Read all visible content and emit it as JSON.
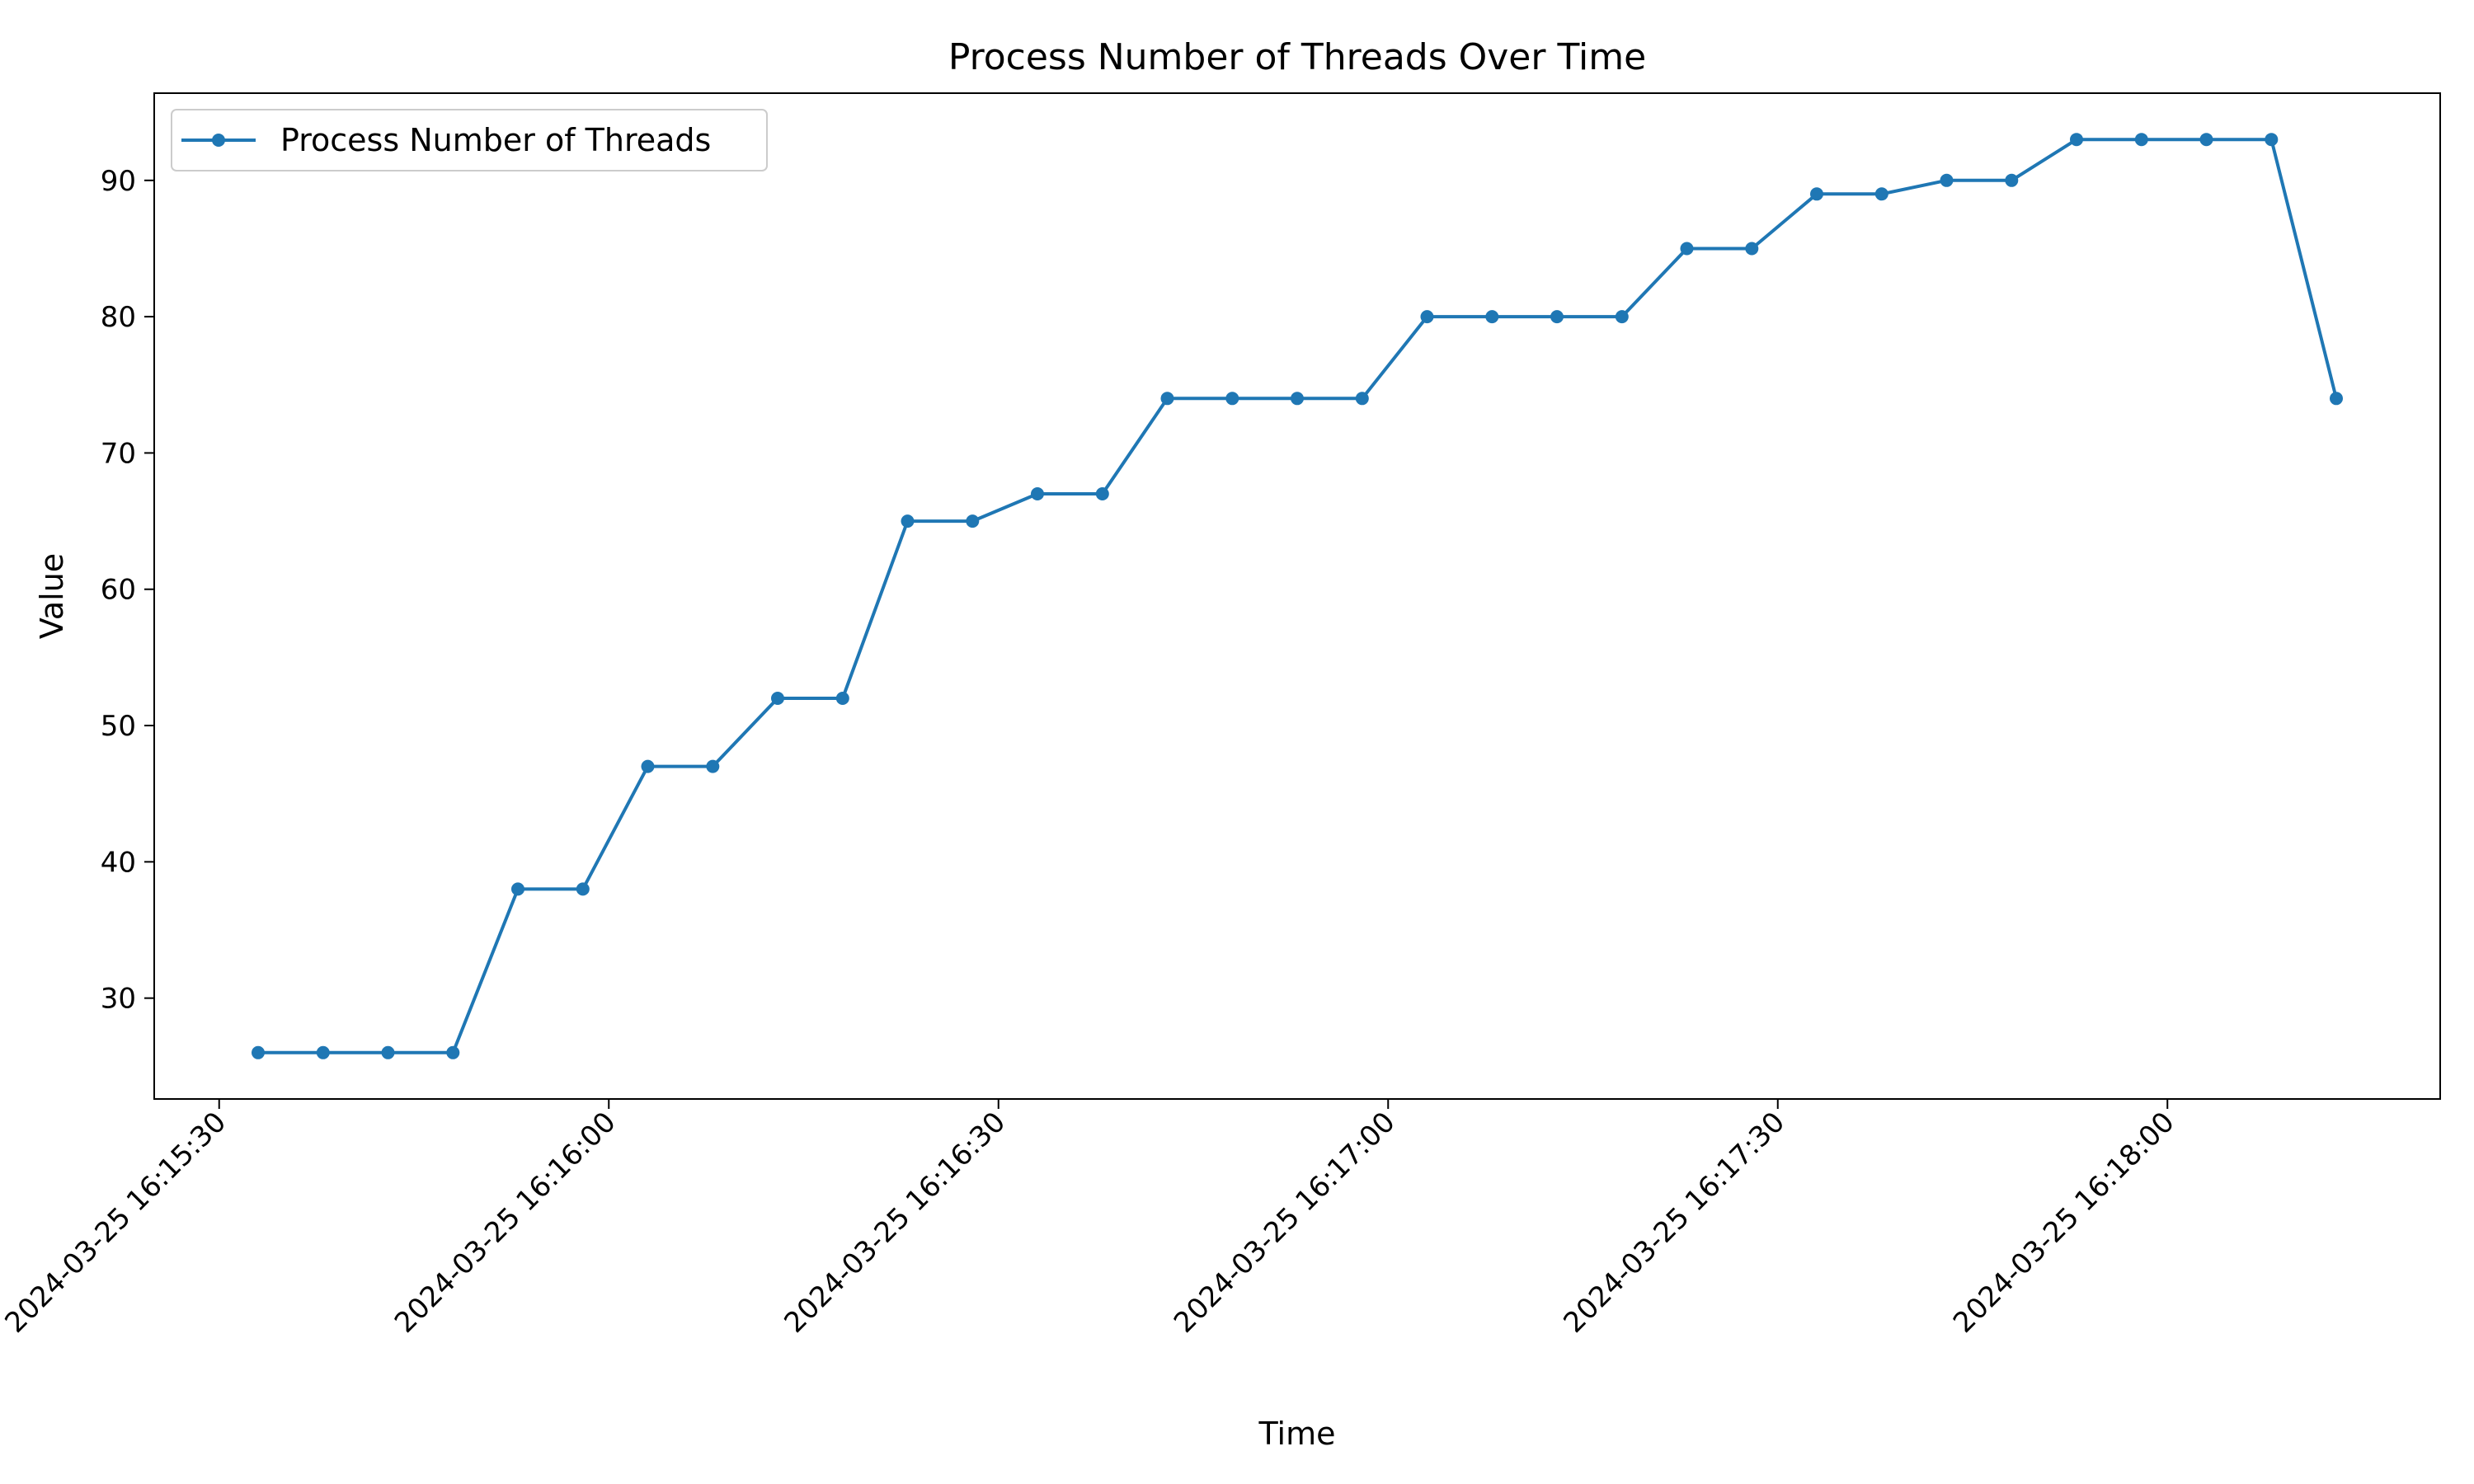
{
  "chart_data": {
    "type": "line",
    "title": "Process Number of Threads Over Time",
    "xlabel": "Time",
    "ylabel": "Value",
    "grid": false,
    "legend_position": "top-left",
    "x_ticks": [
      "2024-03-25 16:15:30",
      "2024-03-25 16:16:00",
      "2024-03-25 16:16:30",
      "2024-03-25 16:17:00",
      "2024-03-25 16:17:30",
      "2024-03-25 16:18:00"
    ],
    "y_ticks": [
      30,
      40,
      50,
      60,
      70,
      80,
      90
    ],
    "xlim": [
      "2024-03-25 16:15:25",
      "2024-03-25 16:18:21"
    ],
    "ylim": [
      22.6,
      96.4
    ],
    "series": [
      {
        "name": "Process Number of Threads",
        "color": "#1f77b4",
        "marker": "circle",
        "x": [
          "2024-03-25 16:15:33",
          "2024-03-25 16:15:38",
          "2024-03-25 16:15:43",
          "2024-03-25 16:15:48",
          "2024-03-25 16:15:53",
          "2024-03-25 16:15:58",
          "2024-03-25 16:16:03",
          "2024-03-25 16:16:08",
          "2024-03-25 16:16:13",
          "2024-03-25 16:16:18",
          "2024-03-25 16:16:23",
          "2024-03-25 16:16:28",
          "2024-03-25 16:16:33",
          "2024-03-25 16:16:38",
          "2024-03-25 16:16:43",
          "2024-03-25 16:16:48",
          "2024-03-25 16:16:53",
          "2024-03-25 16:16:58",
          "2024-03-25 16:17:03",
          "2024-03-25 16:17:08",
          "2024-03-25 16:17:13",
          "2024-03-25 16:17:18",
          "2024-03-25 16:17:23",
          "2024-03-25 16:17:28",
          "2024-03-25 16:17:33",
          "2024-03-25 16:17:38",
          "2024-03-25 16:17:43",
          "2024-03-25 16:17:48",
          "2024-03-25 16:17:53",
          "2024-03-25 16:17:58",
          "2024-03-25 16:18:03",
          "2024-03-25 16:18:08",
          "2024-03-25 16:18:13"
        ],
        "y": [
          26,
          26,
          26,
          26,
          38,
          38,
          47,
          47,
          52,
          52,
          65,
          65,
          67,
          67,
          74,
          74,
          74,
          74,
          80,
          80,
          80,
          80,
          85,
          85,
          89,
          89,
          90,
          90,
          93,
          93,
          93,
          93,
          74
        ]
      }
    ]
  }
}
